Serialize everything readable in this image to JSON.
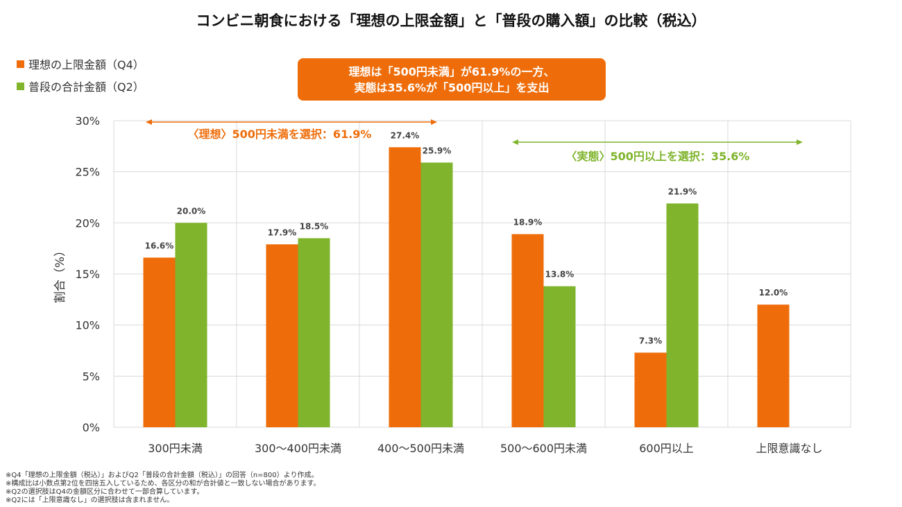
{
  "title": "コンビニ朝食における「理想の上限金額」と「普段の購入額」の比較（税込）",
  "legend": [
    {
      "label": "理想の上限金額（Q4）",
      "color": "#ee6d0a"
    },
    {
      "label": "普段の合計金額（Q2）",
      "color": "#7fb42c"
    }
  ],
  "callout": {
    "line1": "理想は「500円未満」が61.9%の一方、",
    "line2": "実態は35.6%が「500円以上」を支出",
    "color": "#ee6d0a"
  },
  "annotations": [
    {
      "label": "〈理想〉500円未満を選択：61.9%",
      "color": "#ee6d0a"
    },
    {
      "label": "〈実態〉500円以上を選択：35.6%",
      "color": "#7fb42c"
    }
  ],
  "chart_data": {
    "type": "bar",
    "categories": [
      "300円未満",
      "300～400円未満",
      "400～500円未満",
      "500～600円未満",
      "600円以上",
      "上限意識なし"
    ],
    "series": [
      {
        "name": "理想の上限金額（Q4）",
        "color": "#ee6d0a",
        "values": [
          16.6,
          17.9,
          27.4,
          18.9,
          7.3,
          12.0
        ],
        "labels": [
          "16.6%",
          "17.9%",
          "27.4%",
          "18.9%",
          "7.3%",
          "12.0%"
        ]
      },
      {
        "name": "普段の合計金額（Q2）",
        "color": "#7fb42c",
        "values": [
          20.0,
          18.5,
          25.9,
          13.8,
          21.9,
          null
        ],
        "labels": [
          "20.0%",
          "18.5%",
          "25.9%",
          "13.8%",
          "21.9%",
          null
        ]
      }
    ],
    "ylabel": "割合（%）",
    "ylim": [
      0,
      30
    ],
    "yticks": [
      0,
      5,
      10,
      15,
      20,
      25,
      30
    ],
    "ytick_labels": [
      "0%",
      "5%",
      "10%",
      "15%",
      "20%",
      "25%",
      "30%"
    ],
    "grid": true
  },
  "notes": [
    "※Q4「理想の上限金額（税込）」およびQ2「普段の合計金額（税込）」の回答（n=800）より作成。",
    "※構成比は小数点第2位を四捨五入しているため、各区分の和が合計値と一致しない場合があります。",
    "※Q2の選択肢はQ4の金額区分に合わせて一部合算しています。",
    "※Q2には「上限意識なし」の選択肢は含まれません。"
  ]
}
